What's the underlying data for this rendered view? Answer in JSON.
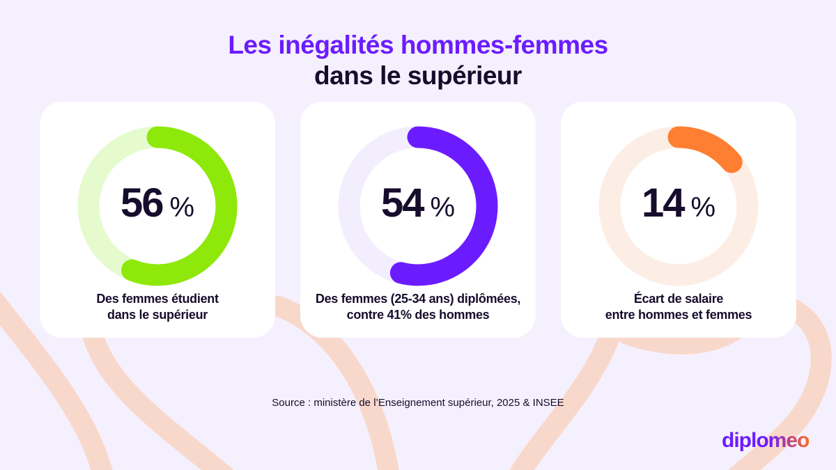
{
  "title": {
    "line1": "Les inégalités hommes-femmes",
    "line2": "dans le supérieur"
  },
  "chart_data": [
    {
      "type": "pie",
      "variant": "donut",
      "value": 56,
      "max": 100,
      "label": "56",
      "unit": "%",
      "caption_line1": "Des femmes étudient",
      "caption_line2": "dans le supérieur",
      "color": "#8ee80a",
      "track_color": "#e5fbce"
    },
    {
      "type": "pie",
      "variant": "donut",
      "value": 54,
      "max": 100,
      "label": "54",
      "unit": "%",
      "caption_line1": "Des femmes (25-34 ans) diplômées,",
      "caption_line2": "contre 41% des hommes",
      "color": "#6b1cff",
      "track_color": "#f3eefd"
    },
    {
      "type": "pie",
      "variant": "donut",
      "value": 14,
      "max": 100,
      "label": "14",
      "unit": "%",
      "caption_line1": "Écart de salaire",
      "caption_line2": "entre hommes et femmes",
      "color": "#ff7f32",
      "track_color": "#fdeee5"
    }
  ],
  "source": "Source : ministère de l’Enseignement supérieur, 2025 & INSEE",
  "logo": "diplomeo",
  "colors": {
    "background": "#f5f0fd",
    "accent": "#6b1cff",
    "decor": "#f9d8cc"
  }
}
